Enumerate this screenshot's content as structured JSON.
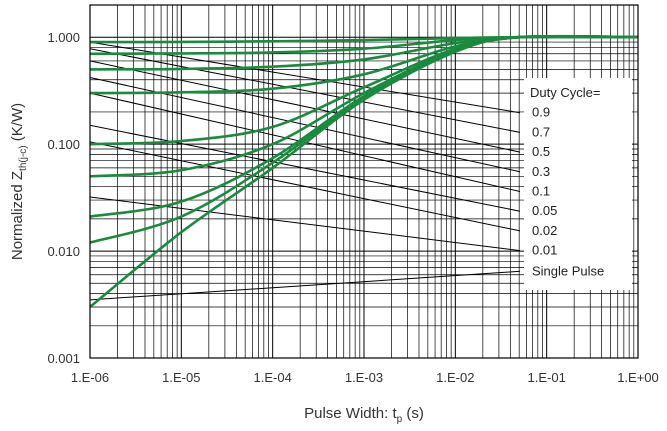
{
  "chart_data": {
    "type": "line",
    "x_scale": "log",
    "y_scale": "log",
    "xlim": [
      1e-06,
      1
    ],
    "ylim": [
      0.001,
      2
    ],
    "grid": true,
    "x_ticks": [
      "1.E-06",
      "1.E-05",
      "1.E-04",
      "1.E-03",
      "1.E-02",
      "1.E-01",
      "1.E+00"
    ],
    "y_ticks": [
      "0.001",
      "0.010",
      "0.100",
      "1.000"
    ],
    "ylabel_main": "Normalized  Z",
    "ylabel_sub": "th(j-c)",
    "ylabel_unit": " (K/W)",
    "xlabel_main": "Pulse Width:  t",
    "xlabel_sub": "p",
    "xlabel_unit": " (s)",
    "legend_title": "Duty Cycle=",
    "series_color": "#1a8a3e",
    "series": [
      {
        "name": "0.9",
        "x": [
          1e-06,
          1e-05,
          0.0001,
          0.001,
          0.01,
          0.05,
          1
        ],
        "y": [
          0.9,
          0.903,
          0.915,
          0.94,
          0.98,
          1.0,
          1.0
        ]
      },
      {
        "name": "0.7",
        "x": [
          1e-06,
          1e-05,
          0.0001,
          0.001,
          0.01,
          0.05,
          1
        ],
        "y": [
          0.7,
          0.705,
          0.72,
          0.78,
          0.94,
          1.0,
          1.0
        ]
      },
      {
        "name": "0.5",
        "x": [
          1e-06,
          1e-05,
          0.0001,
          0.001,
          0.01,
          0.05,
          1
        ],
        "y": [
          0.5,
          0.505,
          0.53,
          0.62,
          0.88,
          1.0,
          1.0
        ]
      },
      {
        "name": "0.3",
        "x": [
          1e-06,
          1e-05,
          0.0001,
          0.001,
          0.01,
          0.05,
          1
        ],
        "y": [
          0.3,
          0.305,
          0.33,
          0.45,
          0.82,
          1.0,
          1.0
        ]
      },
      {
        "name": "0.1",
        "x": [
          1e-06,
          1e-05,
          0.0001,
          0.001,
          0.01,
          0.05,
          1
        ],
        "y": [
          0.1,
          0.107,
          0.145,
          0.34,
          0.78,
          1.0,
          1.0
        ]
      },
      {
        "name": "0.05",
        "x": [
          1e-06,
          1e-05,
          0.0001,
          0.001,
          0.01,
          0.05,
          1
        ],
        "y": [
          0.05,
          0.057,
          0.1,
          0.3,
          0.76,
          1.0,
          1.0
        ]
      },
      {
        "name": "0.02",
        "x": [
          1e-06,
          1e-05,
          0.0001,
          0.001,
          0.01,
          0.05,
          1
        ],
        "y": [
          0.021,
          0.029,
          0.074,
          0.28,
          0.75,
          1.0,
          1.0
        ]
      },
      {
        "name": "0.01",
        "x": [
          1e-06,
          1e-05,
          0.0001,
          0.001,
          0.01,
          0.05,
          1
        ],
        "y": [
          0.012,
          0.021,
          0.067,
          0.27,
          0.74,
          1.0,
          1.0
        ]
      },
      {
        "name": "Single Pulse",
        "x": [
          1e-06,
          1e-05,
          0.0001,
          0.001,
          0.01,
          0.05,
          1
        ],
        "y": [
          0.003,
          0.015,
          0.06,
          0.26,
          0.73,
          1.0,
          1.0
        ]
      }
    ]
  }
}
